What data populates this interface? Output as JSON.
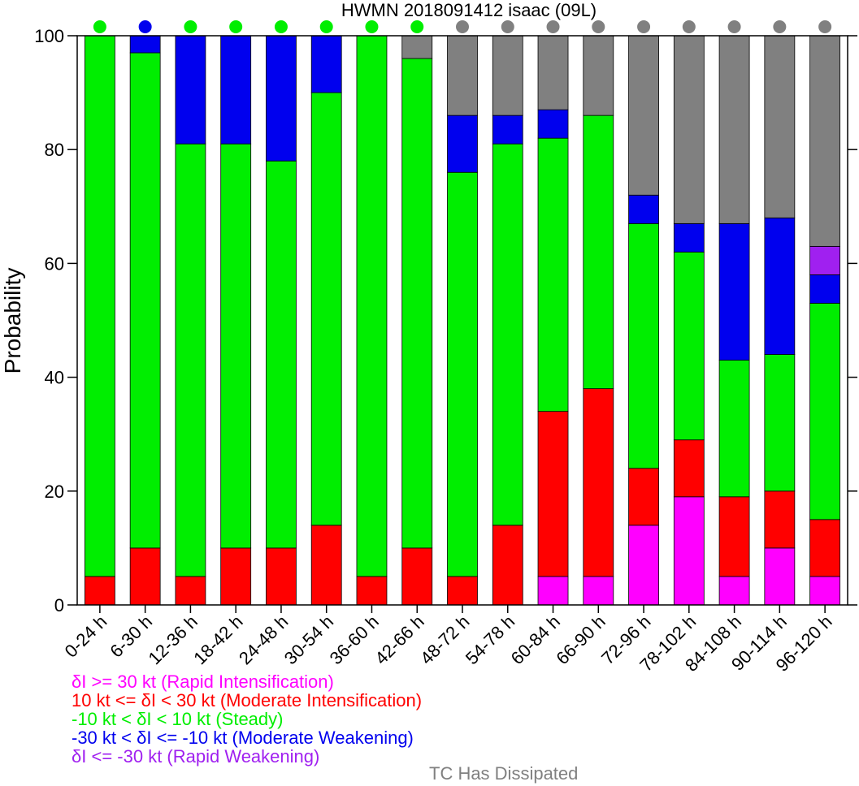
{
  "chart_data": {
    "type": "bar",
    "stacked": true,
    "title": "HWMN 2018091412 isaac (09L)",
    "ylabel": "Probability",
    "xlabel": "",
    "ylim": [
      0,
      100
    ],
    "yticks": [
      "0",
      "20",
      "40",
      "60",
      "80",
      "100"
    ],
    "categories": [
      "0-24 h",
      "6-30 h",
      "12-36 h",
      "18-42 h",
      "24-48 h",
      "30-54 h",
      "36-60 h",
      "42-66 h",
      "48-72 h",
      "54-78 h",
      "60-84 h",
      "66-90 h",
      "72-96 h",
      "78-102 h",
      "84-108 h",
      "90-114 h",
      "96-120 h"
    ],
    "series": [
      {
        "key": "ri",
        "color": "#ff00ff",
        "values": [
          0,
          0,
          0,
          0,
          0,
          0,
          0,
          0,
          0,
          0,
          5,
          5,
          14,
          19,
          5,
          10,
          5
        ]
      },
      {
        "key": "mi",
        "color": "#ff0000",
        "values": [
          5,
          10,
          5,
          10,
          10,
          14,
          5,
          10,
          5,
          14,
          29,
          33,
          10,
          10,
          14,
          10,
          10
        ]
      },
      {
        "key": "st",
        "color": "#00ee00",
        "values": [
          95,
          87,
          76,
          71,
          68,
          76,
          95,
          86,
          71,
          67,
          48,
          48,
          43,
          33,
          24,
          24,
          38
        ]
      },
      {
        "key": "mw",
        "color": "#0000ee",
        "values": [
          0,
          3,
          19,
          19,
          22,
          10,
          0,
          0,
          10,
          5,
          5,
          0,
          5,
          5,
          24,
          24,
          5
        ]
      },
      {
        "key": "rw",
        "color": "#a020f0",
        "values": [
          0,
          0,
          0,
          0,
          0,
          0,
          0,
          0,
          0,
          0,
          0,
          0,
          0,
          0,
          0,
          0,
          5
        ]
      },
      {
        "key": "dis",
        "color": "#808080",
        "values": [
          0,
          0,
          0,
          0,
          0,
          0,
          0,
          4,
          14,
          14,
          13,
          14,
          28,
          33,
          33,
          32,
          37
        ]
      }
    ],
    "top_markers": [
      "#00ee00",
      "#0000ee",
      "#00ee00",
      "#00ee00",
      "#00ee00",
      "#00ee00",
      "#00ee00",
      "#00ee00",
      "#808080",
      "#808080",
      "#808080",
      "#808080",
      "#808080",
      "#808080",
      "#808080",
      "#808080",
      "#808080"
    ]
  },
  "legend": {
    "items": [
      {
        "text": "δI >= 30 kt (Rapid Intensification)",
        "color": "#ff00ff"
      },
      {
        "text": "10 kt <= δI < 30 kt (Moderate Intensification)",
        "color": "#ff0000"
      },
      {
        "text": "-10 kt < δI < 10 kt (Steady)",
        "color": "#00ee00"
      },
      {
        "text": "-30 kt < δI <= -10 kt (Moderate Weakening)",
        "color": "#0000ee"
      },
      {
        "text": "δI <= -30 kt (Rapid Weakening)",
        "color": "#a020f0"
      }
    ],
    "dissipated": {
      "text": "TC Has Dissipated",
      "color": "#808080"
    }
  }
}
